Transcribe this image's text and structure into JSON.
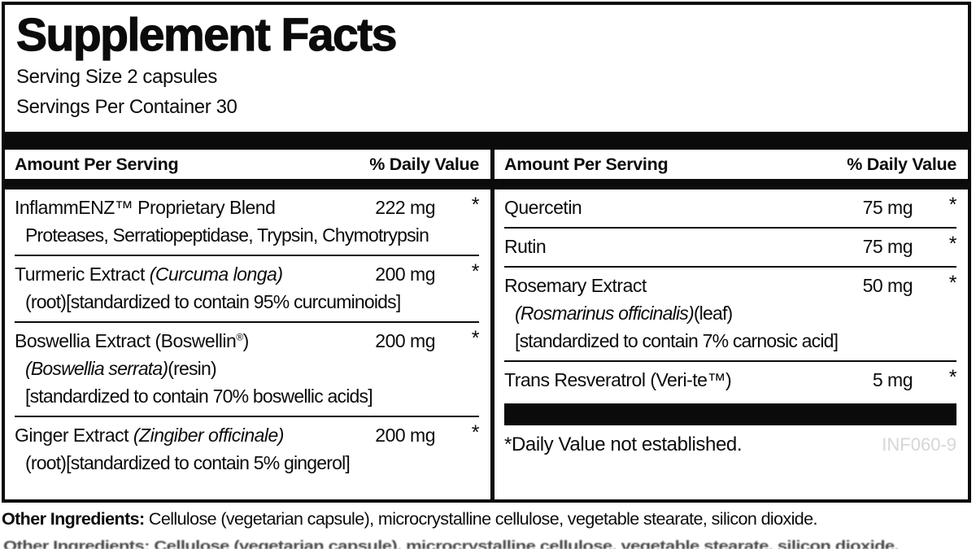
{
  "label": {
    "title": "Supplement Facts",
    "serving_size": "Serving Size 2 capsules",
    "servings_per_container": "Servings Per Container 30"
  },
  "table": {
    "header": {
      "amount": "Amount Per Serving",
      "daily_value": "% Daily Value"
    },
    "left_rows": [
      {
        "name": [
          [
            "InflammENZ™ Proprietary Blend",
            ""
          ]
        ],
        "amount": "222 mg",
        "dv": "*",
        "subs": [
          [
            [
              "Proteases, Serratiopeptidase, Trypsin, Chymotrypsin",
              ""
            ]
          ]
        ]
      },
      {
        "name": [
          [
            "Turmeric Extract ",
            ""
          ],
          [
            "(Curcuma longa)",
            "i"
          ]
        ],
        "amount": "200 mg",
        "dv": "*",
        "subs": [
          [
            [
              "(root)[standardized to contain 95% curcuminoids]",
              ""
            ]
          ]
        ]
      },
      {
        "name": [
          [
            "Boswellia Extract (Boswellin",
            ""
          ],
          [
            "®",
            "sup"
          ],
          [
            ")",
            ""
          ]
        ],
        "amount": "200 mg",
        "dv": "*",
        "subs": [
          [
            [
              "(Boswellia serrata)",
              "i"
            ],
            [
              "(resin)",
              ""
            ]
          ],
          [
            [
              "[standardized to contain 70% boswellic acids]",
              ""
            ]
          ]
        ]
      },
      {
        "name": [
          [
            "Ginger Extract ",
            ""
          ],
          [
            "(Zingiber officinale)",
            "i"
          ]
        ],
        "amount": "200 mg",
        "dv": "*",
        "subs": [
          [
            [
              "(root)[standardized to contain 5% gingerol]",
              ""
            ]
          ]
        ]
      }
    ],
    "right_rows": [
      {
        "name": [
          [
            "Quercetin",
            ""
          ]
        ],
        "amount": "75 mg",
        "dv": "*",
        "subs": []
      },
      {
        "name": [
          [
            "Rutin",
            ""
          ]
        ],
        "amount": "75 mg",
        "dv": "*",
        "subs": []
      },
      {
        "name": [
          [
            "Rosemary Extract",
            ""
          ]
        ],
        "amount": "50 mg",
        "dv": "*",
        "subs": [
          [
            [
              "(Rosmarinus officinalis)",
              "i"
            ],
            [
              "(leaf)",
              ""
            ]
          ],
          [
            [
              "[standardized to contain 7% carnosic acid]",
              ""
            ]
          ]
        ]
      },
      {
        "name": [
          [
            "Trans Resveratrol (Veri-te™)",
            ""
          ]
        ],
        "amount": "5 mg",
        "dv": "*",
        "subs": []
      }
    ],
    "footnote": "*Daily Value not established.",
    "product_code": "INF060-9"
  },
  "other_ingredients": {
    "label": "Other Ingredients:",
    "text": " Cellulose (vegetarian capsule), microcrystalline cellulose, vegetable stearate, silicon dioxide."
  },
  "clipped_repeat_line": "Other Ingredients: Cellulose (vegetarian capsule), microcrystalline cellulose, vegetable stearate, silicon dioxide.",
  "colors": {
    "ink": "#0b0b0b",
    "code_gray": "#d7d7d7",
    "background": "#ffffff"
  }
}
